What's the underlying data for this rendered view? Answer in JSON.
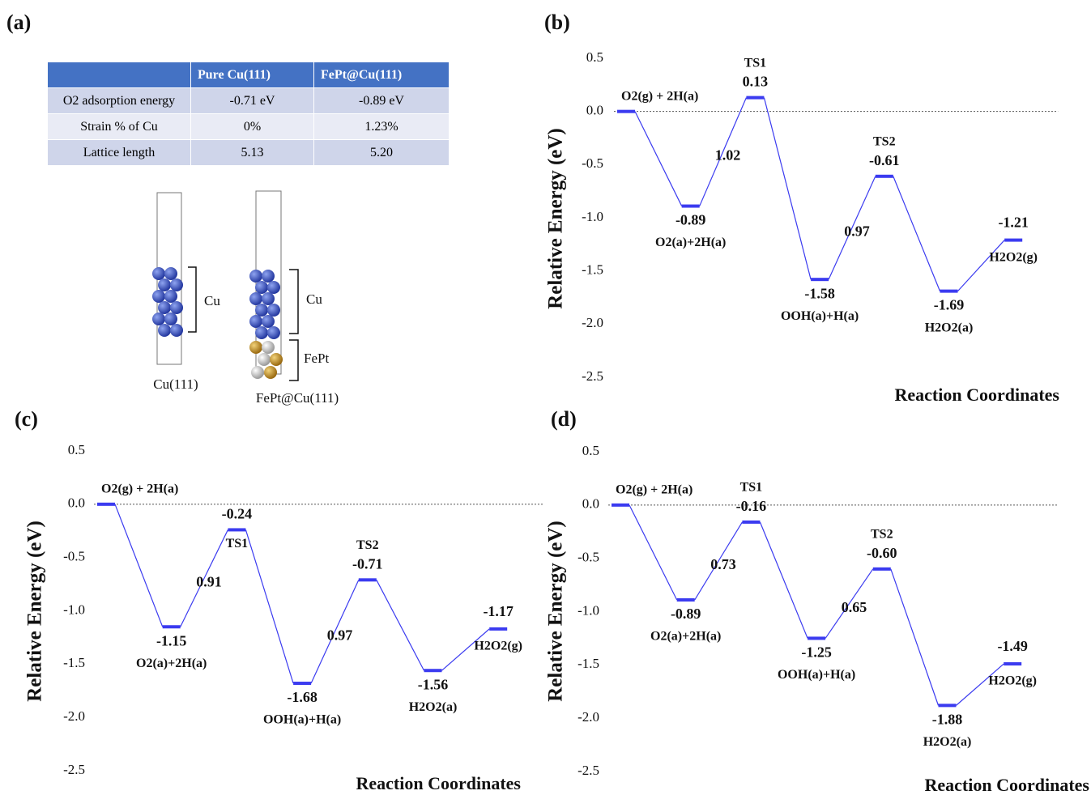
{
  "panel_a": {
    "label": "(a)",
    "table": {
      "columns": [
        "Pure Cu(111)",
        "FePt@Cu(111)"
      ],
      "rows": [
        [
          "O2 adsorption energy",
          "-0.71 eV",
          "-0.89 eV"
        ],
        [
          "Strain % of Cu",
          "0%",
          "1.23%"
        ],
        [
          "Lattice length",
          "5.13",
          "5.20"
        ]
      ]
    },
    "structures": [
      {
        "name": "Cu(111)",
        "brackets": [
          "Cu"
        ]
      },
      {
        "name": "FePt@Cu(111)",
        "brackets": [
          "Cu",
          "FePt"
        ]
      }
    ]
  },
  "chart_data": [
    {
      "type": "line",
      "panel": "(b)",
      "categories": [
        "O2(g) + 2H(a)",
        "O2(a)+2H(a)",
        "TS1",
        "OOH(a)+H(a)",
        "TS2",
        "H2O2(a)",
        "H2O2(g)"
      ],
      "values": [
        0,
        -0.89,
        0.13,
        -1.58,
        -0.61,
        -1.69,
        -1.21
      ],
      "value_labels": [
        null,
        "-0.89",
        "0.13",
        "-1.58",
        "-0.61",
        "-1.69",
        "-1.21"
      ],
      "barriers": [
        1.02,
        0.97
      ],
      "ylabel": "Relative Energy (eV)",
      "xlabel": "Reaction Coordinates",
      "ylim": [
        -2.5,
        0.5
      ],
      "yticks": [
        0.5,
        {
          "value": 0,
          "label": "0.0"
        },
        -0.5,
        {
          "value": -1,
          "label": "-1.0"
        },
        -1.5,
        {
          "value": -2,
          "label": "-2.0"
        },
        -2.5
      ],
      "color": "#3b3bf0",
      "zero_line": true
    },
    {
      "type": "line",
      "panel": "(c)",
      "categories": [
        "O2(g) + 2H(a)",
        "O2(a)+2H(a)",
        "TS1",
        "OOH(a)+H(a)",
        "TS2",
        "H2O2(a)",
        "H2O2(g)"
      ],
      "values": [
        0,
        -1.15,
        -0.24,
        -1.68,
        -0.71,
        -1.56,
        -1.17
      ],
      "value_labels": [
        null,
        "-1.15",
        "-0.24",
        "-1.68",
        "-0.71",
        "-1.56",
        "-1.17"
      ],
      "barriers": [
        0.91,
        0.97
      ],
      "ylabel": "Relative Energy (eV)",
      "xlabel": "Reaction Coordinates",
      "ylim": [
        -2.5,
        0.5
      ],
      "yticks": [
        0.5,
        {
          "value": 0,
          "label": "0.0"
        },
        -0.5,
        {
          "value": -1,
          "label": "-1.0"
        },
        -1.5,
        {
          "value": -2,
          "label": "-2.0"
        },
        -2.5
      ],
      "color": "#3b3bf0",
      "zero_line": true
    },
    {
      "type": "line",
      "panel": "(d)",
      "categories": [
        "O2(g) + 2H(a)",
        "O2(a)+2H(a)",
        "TS1",
        "OOH(a)+H(a)",
        "TS2",
        "H2O2(a)",
        "H2O2(g)"
      ],
      "values": [
        0,
        -0.89,
        -0.16,
        -1.25,
        -0.6,
        -1.88,
        -1.49
      ],
      "value_labels": [
        null,
        "-0.89",
        "-0.16",
        "-1.25",
        "-0.60",
        "-1.88",
        "-1.49"
      ],
      "barriers": [
        0.73,
        0.65
      ],
      "ylabel": "Relative Energy (eV)",
      "xlabel": "Reaction Coordinates",
      "ylim": [
        -2.5,
        0.5
      ],
      "yticks": [
        0.5,
        {
          "value": 0,
          "label": "0.0"
        },
        -0.5,
        {
          "value": -1,
          "label": "-1.0"
        },
        -1.5,
        {
          "value": -2,
          "label": "-2.0"
        },
        -2.5
      ],
      "color": "#3b3bf0",
      "zero_line": true
    }
  ]
}
